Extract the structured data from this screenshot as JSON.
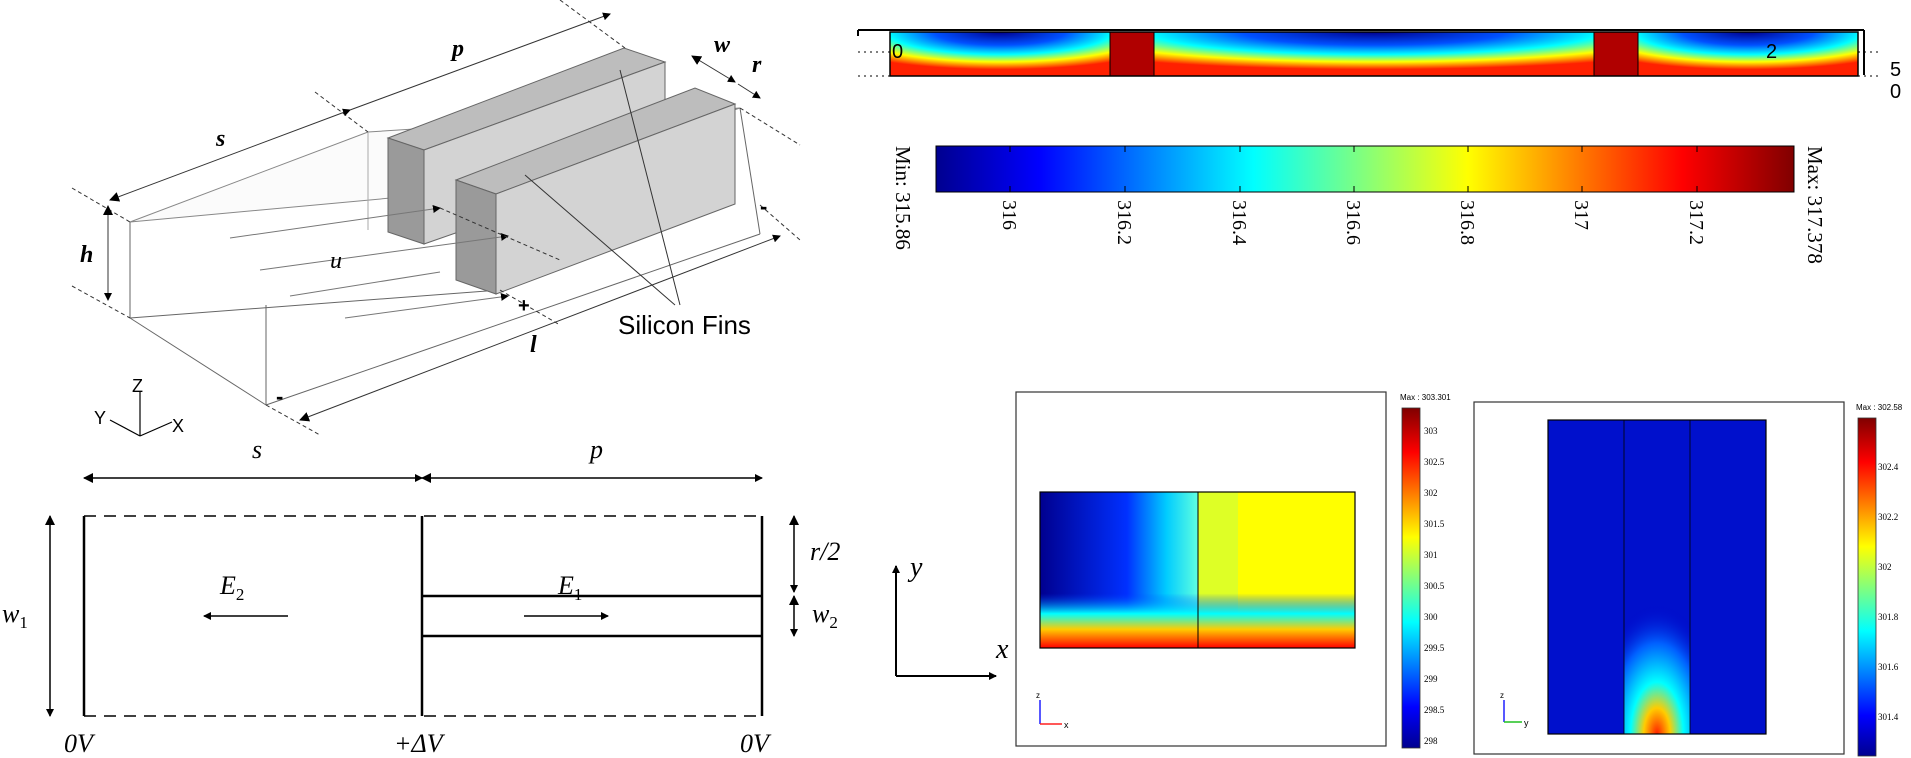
{
  "isometric": {
    "labels": {
      "p": "p",
      "s": "s",
      "h": "h",
      "u": "u",
      "l": "l",
      "w": "w",
      "r": "r",
      "plus": "+",
      "minus_bottom": "-",
      "minus_right": "-"
    },
    "callout": "Silicon Fins",
    "axes": {
      "z": "Z",
      "y": "Y",
      "x": "X"
    }
  },
  "schematic": {
    "labels": {
      "s": "s",
      "p": "p",
      "w1": "w",
      "w1_sub": "1",
      "r_half": "r/2",
      "w2": "w",
      "w2_sub": "2",
      "E2": "E",
      "E2_sub": "2",
      "E1": "E",
      "E1_sub": "1",
      "v_left": "0V",
      "v_mid": "+ΔV",
      "v_right": "0V"
    }
  },
  "top_colormap": {
    "tick_left": "0",
    "tick_right": "2",
    "edge_labels": [
      "5",
      "0"
    ]
  },
  "colorbar_top": {
    "min_label": "Min: 315.86",
    "max_label": "Max: 317.378",
    "ticks": [
      "316",
      "316.2",
      "316.4",
      "316.6",
      "316.8",
      "317",
      "317.2"
    ]
  },
  "xy_axes": {
    "y": "y",
    "x": "x"
  },
  "plot_left": {
    "max_label": "Max : 303.301",
    "ticks": [
      "303",
      "302.5",
      "302",
      "301.5",
      "301",
      "300.5",
      "300",
      "299.5",
      "299",
      "298.5",
      "298"
    ],
    "triad": {
      "z": "z",
      "x": "x"
    }
  },
  "plot_right": {
    "max_label": "Max : 302.58",
    "ticks": [
      "302.4",
      "302.2",
      "302",
      "301.8",
      "301.6",
      "301.4"
    ],
    "triad": {
      "z": "z",
      "y": "y"
    }
  },
  "colors": {
    "jet": [
      "#00008f",
      "#0000ff",
      "#00ffff",
      "#ffff00",
      "#ff0000",
      "#800000"
    ],
    "fin_dark": "#9a9a9a",
    "fin_light": "#d3d3d3",
    "fin_top": "#bdbdbd"
  }
}
